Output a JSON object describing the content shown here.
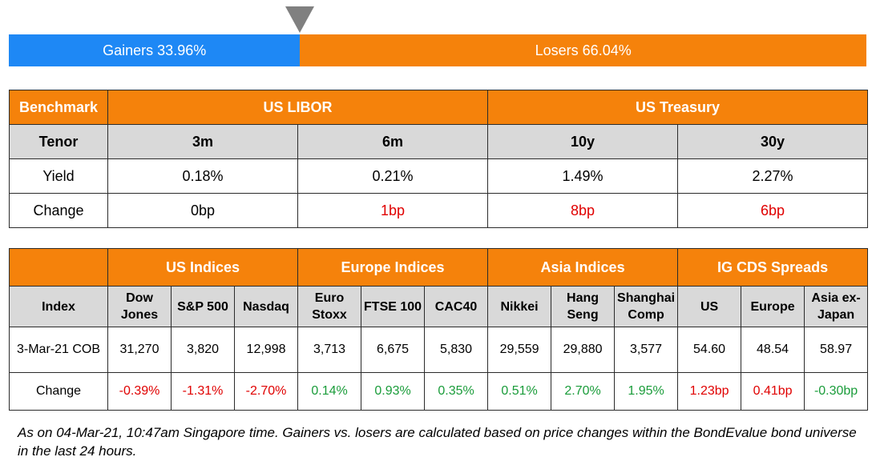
{
  "gainers_losers": {
    "gainers_label": "Gainers 33.96%",
    "losers_label": "Losers 66.04%",
    "gainers_share_percent": 33.96,
    "losers_share_percent": 66.04,
    "marker_color": "#808080",
    "gainers_color": "#1e88f5",
    "losers_color": "#f5820b"
  },
  "rates_table": {
    "benchmark_label": "Benchmark",
    "groups": [
      "US LIBOR",
      "US Treasury"
    ],
    "tenor_label": "Tenor",
    "tenors": [
      "3m",
      "6m",
      "10y",
      "30y"
    ],
    "yield_label": "Yield",
    "yields": [
      "0.18%",
      "0.21%",
      "1.49%",
      "2.27%"
    ],
    "change_label": "Change",
    "changes": [
      "0bp",
      "1bp",
      "8bp",
      "6bp"
    ],
    "change_colors": [
      "#000000",
      "#e00000",
      "#e00000",
      "#e00000"
    ]
  },
  "indices_table": {
    "index_label": "Index",
    "groups": [
      "US Indices",
      "Europe Indices",
      "Asia Indices",
      "IG CDS Spreads"
    ],
    "columns": [
      {
        "name_line1": "Dow",
        "name_line2": "Jones",
        "value": "31,270",
        "change": "-0.39%",
        "color": "#e00000"
      },
      {
        "name_line1": "S&P 500",
        "name_line2": "",
        "value": "3,820",
        "change": "-1.31%",
        "color": "#e00000"
      },
      {
        "name_line1": "Nasdaq",
        "name_line2": "",
        "value": "12,998",
        "change": "-2.70%",
        "color": "#e00000"
      },
      {
        "name_line1": "Euro",
        "name_line2": "Stoxx",
        "value": "3,713",
        "change": "0.14%",
        "color": "#1a9c3a"
      },
      {
        "name_line1": "FTSE 100",
        "name_line2": "",
        "value": "6,675",
        "change": "0.93%",
        "color": "#1a9c3a"
      },
      {
        "name_line1": "CAC40",
        "name_line2": "",
        "value": "5,830",
        "change": "0.35%",
        "color": "#1a9c3a"
      },
      {
        "name_line1": "Nikkei",
        "name_line2": "",
        "value": "29,559",
        "change": "0.51%",
        "color": "#1a9c3a"
      },
      {
        "name_line1": "Hang",
        "name_line2": "Seng",
        "value": "29,880",
        "change": "2.70%",
        "color": "#1a9c3a"
      },
      {
        "name_line1": "Shanghai",
        "name_line2": "Comp",
        "value": "3,577",
        "change": "1.95%",
        "color": "#1a9c3a"
      },
      {
        "name_line1": "US",
        "name_line2": "",
        "value": "54.60",
        "change": "1.23bp",
        "color": "#e00000"
      },
      {
        "name_line1": "Europe",
        "name_line2": "",
        "value": "48.54",
        "change": "0.41bp",
        "color": "#e00000"
      },
      {
        "name_line1": "Asia ex-",
        "name_line2": "Japan",
        "value": "58.97",
        "change": "-0.30bp",
        "color": "#1a9c3a"
      }
    ],
    "date_label": "3-Mar-21 COB",
    "change_label": "Change"
  },
  "footnote": "As on 04-Mar-21, 10:47am Singapore time. Gainers vs. losers are calculated based on price changes within the BondEvalue bond universe in the last 24 hours."
}
